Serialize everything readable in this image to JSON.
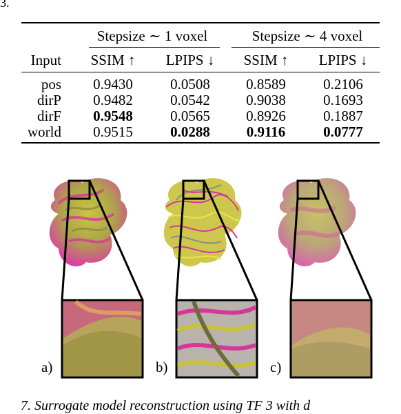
{
  "page_fragment": "3.",
  "table": {
    "group_headers": [
      "Stepsize ∼ 1 voxel",
      "Stepsize ∼ 4 voxel"
    ],
    "columns": [
      "Input",
      "SSIM ↑",
      "LPIPS ↓",
      "SSIM ↑",
      "LPIPS ↓"
    ],
    "rows": [
      {
        "input": "pos",
        "v": [
          "0.9430",
          "0.0508",
          "0.8589",
          "0.2106"
        ],
        "bold": [
          false,
          false,
          false,
          false
        ]
      },
      {
        "input": "dirP",
        "v": [
          "0.9482",
          "0.0542",
          "0.9038",
          "0.1693"
        ],
        "bold": [
          false,
          false,
          false,
          false
        ]
      },
      {
        "input": "dirF",
        "v": [
          "0.9548",
          "0.0565",
          "0.8926",
          "0.1887"
        ],
        "bold": [
          true,
          false,
          false,
          false
        ]
      },
      {
        "input": "world",
        "v": [
          "0.9515",
          "0.0288",
          "0.9116",
          "0.0777"
        ],
        "bold": [
          false,
          true,
          true,
          true
        ]
      }
    ]
  },
  "figure": {
    "panels": [
      {
        "label": "a)",
        "style": "smooth"
      },
      {
        "label": "b)",
        "style": "noisy"
      },
      {
        "label": "c)",
        "style": "blurry"
      }
    ],
    "colors": {
      "magenta": "#d6389a",
      "yellow": "#c9c13a",
      "olive": "#8f8a3a",
      "gray": "#b9b3ad"
    }
  },
  "caption": "7. Surrogate model reconstruction using TF 3 with d"
}
